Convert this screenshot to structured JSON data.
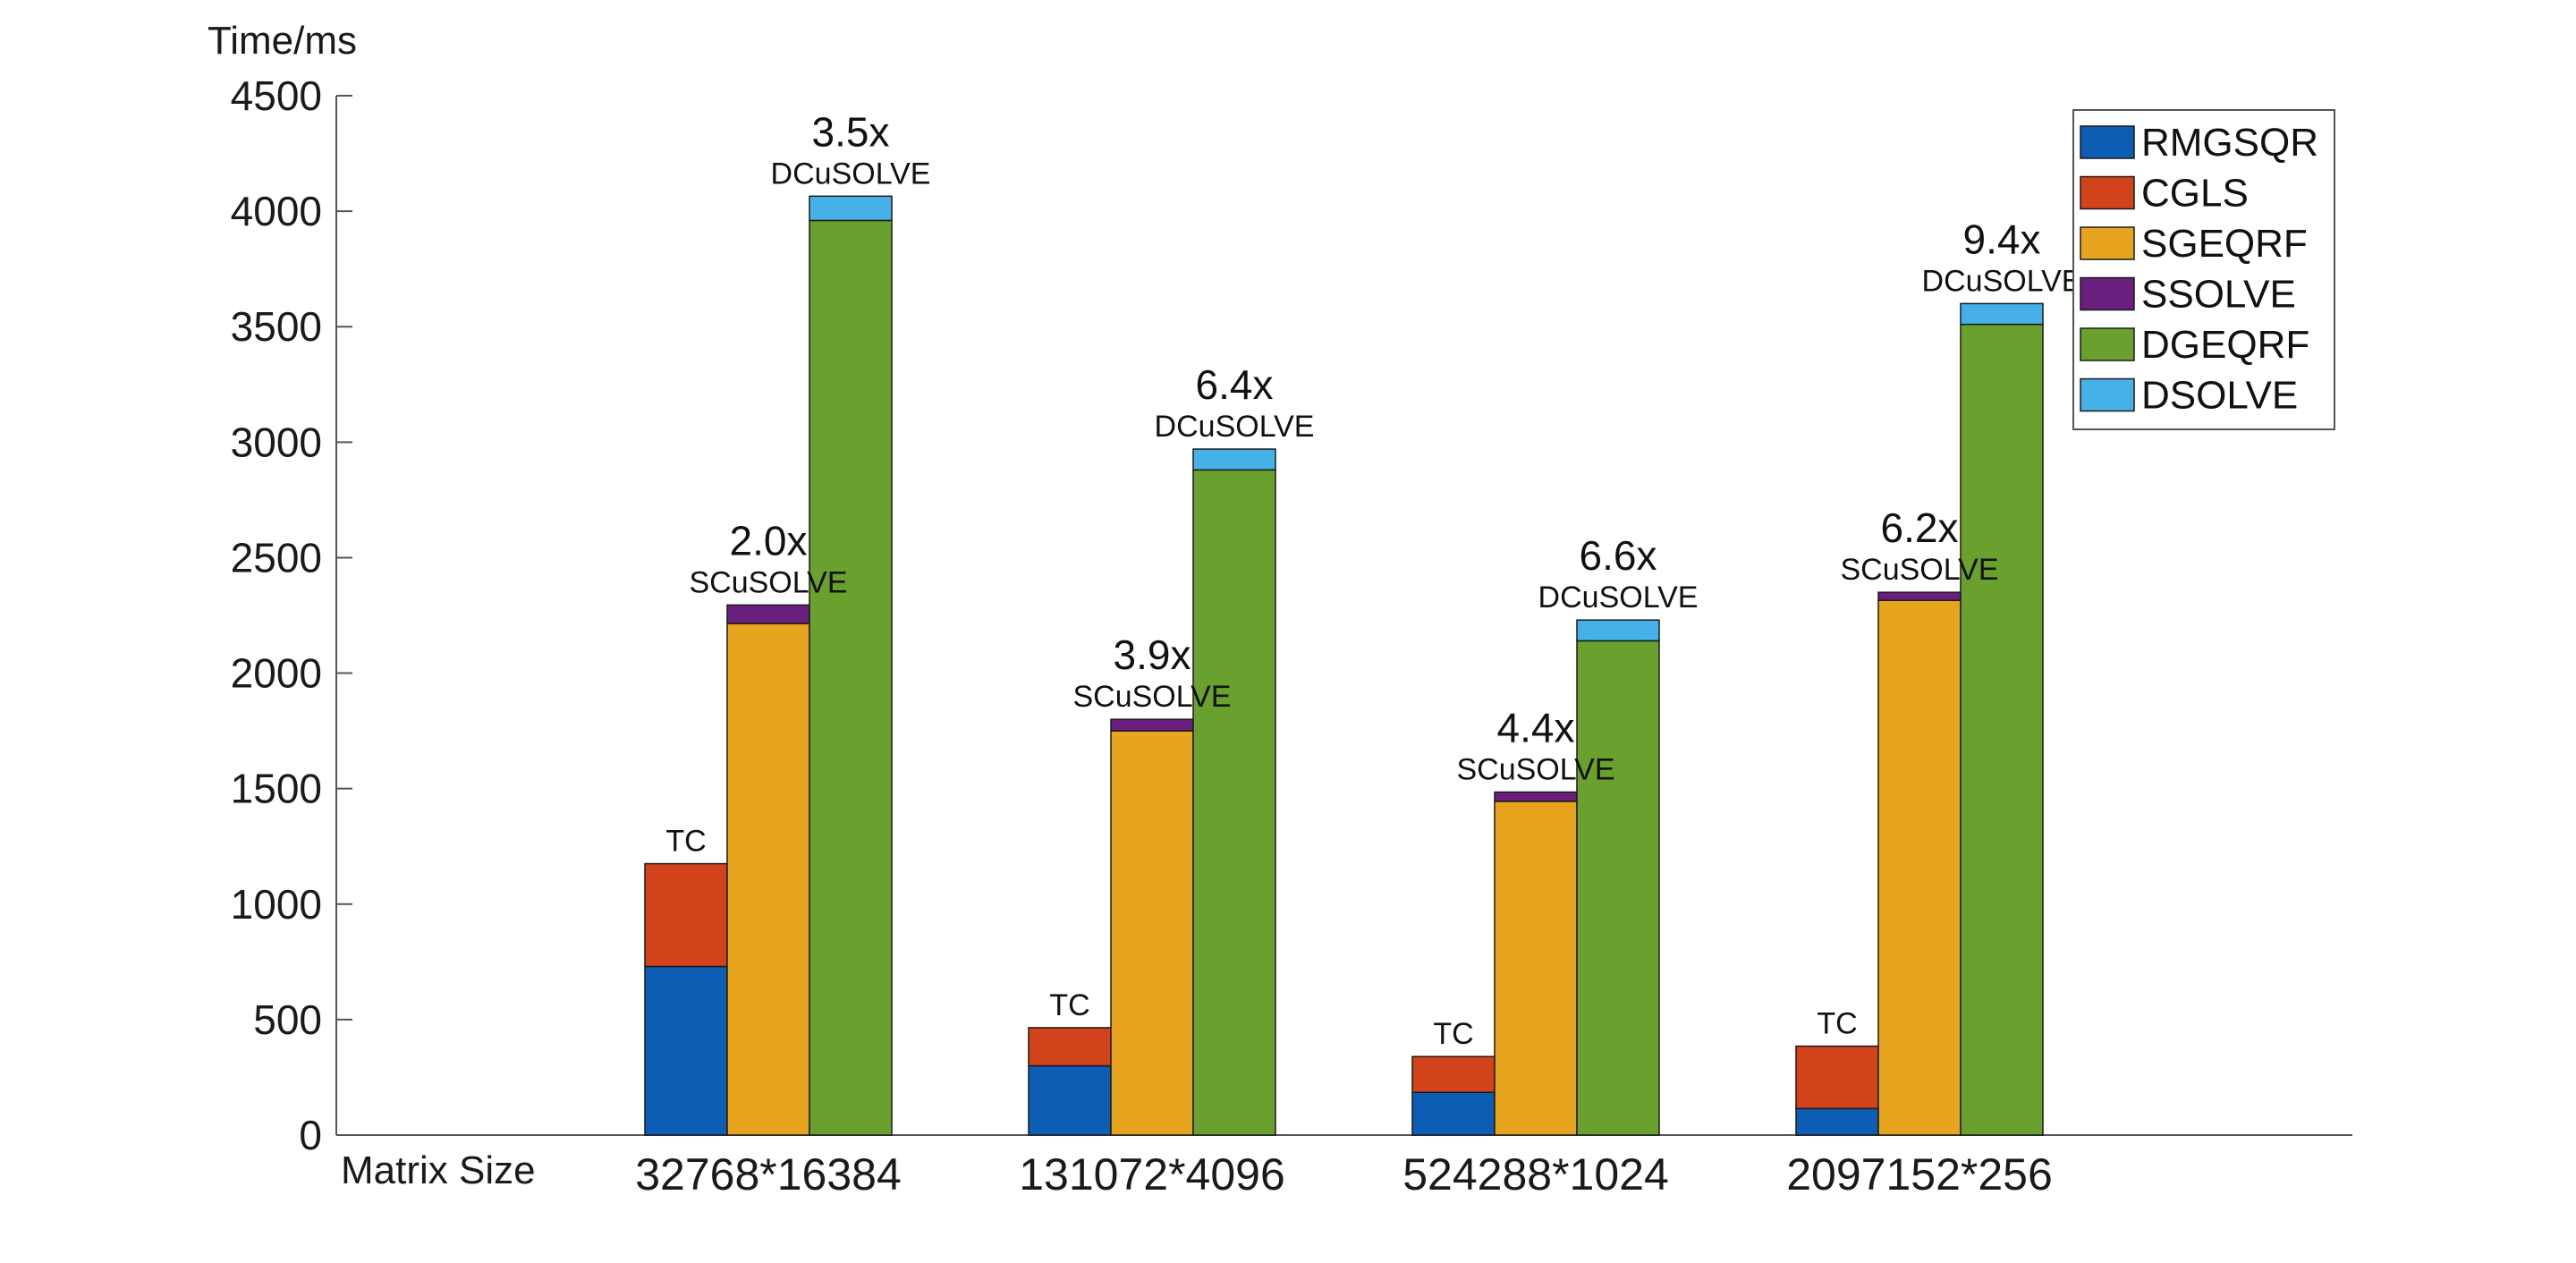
{
  "chart_data": {
    "type": "bar",
    "stacked": true,
    "ylabel": "Time/ms",
    "xlabel": "Matrix Size",
    "ylim": [
      0,
      4500
    ],
    "yticks": [
      0,
      500,
      1000,
      1500,
      2000,
      2500,
      3000,
      3500,
      4000,
      4500
    ],
    "categories": [
      "32768*16384",
      "131072*4096",
      "524288*1024",
      "2097152*256"
    ],
    "colors": {
      "RMGSQR": "#0c5db3",
      "CGLS": "#d2421b",
      "SGEQRF": "#e7a41f",
      "SSOLVE": "#6a1f7e",
      "DGEQRF": "#6aa02e",
      "DSOLVE": "#46b0e8"
    },
    "legend": {
      "position": "top-right",
      "entries": [
        "RMGSQR",
        "CGLS",
        "SGEQRF",
        "SSOLVE",
        "DGEQRF",
        "DSOLVE"
      ]
    },
    "groups": [
      {
        "category": "32768*16384",
        "bars": [
          {
            "label": "TC",
            "speedup": "",
            "segments": [
              {
                "series": "RMGSQR",
                "value": 730
              },
              {
                "series": "CGLS",
                "value": 445
              }
            ]
          },
          {
            "label": "SCuSOLVE",
            "speedup": "2.0x",
            "segments": [
              {
                "series": "SGEQRF",
                "value": 2215
              },
              {
                "series": "SSOLVE",
                "value": 80
              }
            ]
          },
          {
            "label": "DCuSOLVE",
            "speedup": "3.5x",
            "segments": [
              {
                "series": "DGEQRF",
                "value": 3960
              },
              {
                "series": "DSOLVE",
                "value": 105
              }
            ]
          }
        ]
      },
      {
        "category": "131072*4096",
        "bars": [
          {
            "label": "TC",
            "speedup": "",
            "segments": [
              {
                "series": "RMGSQR",
                "value": 300
              },
              {
                "series": "CGLS",
                "value": 165
              }
            ]
          },
          {
            "label": "SCuSOLVE",
            "speedup": "3.9x",
            "segments": [
              {
                "series": "SGEQRF",
                "value": 1750
              },
              {
                "series": "SSOLVE",
                "value": 50
              }
            ]
          },
          {
            "label": "DCuSOLVE",
            "speedup": "6.4x",
            "segments": [
              {
                "series": "DGEQRF",
                "value": 2880
              },
              {
                "series": "DSOLVE",
                "value": 90
              }
            ]
          }
        ]
      },
      {
        "category": "524288*1024",
        "bars": [
          {
            "label": "TC",
            "speedup": "",
            "segments": [
              {
                "series": "RMGSQR",
                "value": 185
              },
              {
                "series": "CGLS",
                "value": 155
              }
            ]
          },
          {
            "label": "SCuSOLVE",
            "speedup": "4.4x",
            "segments": [
              {
                "series": "SGEQRF",
                "value": 1445
              },
              {
                "series": "SSOLVE",
                "value": 40
              }
            ]
          },
          {
            "label": "DCuSOLVE",
            "speedup": "6.6x",
            "segments": [
              {
                "series": "DGEQRF",
                "value": 2140
              },
              {
                "series": "DSOLVE",
                "value": 90
              }
            ]
          }
        ]
      },
      {
        "category": "2097152*256",
        "bars": [
          {
            "label": "TC",
            "speedup": "",
            "segments": [
              {
                "series": "RMGSQR",
                "value": 115
              },
              {
                "series": "CGLS",
                "value": 270
              }
            ]
          },
          {
            "label": "SCuSOLVE",
            "speedup": "6.2x",
            "segments": [
              {
                "series": "SGEQRF",
                "value": 2315
              },
              {
                "series": "SSOLVE",
                "value": 35
              }
            ]
          },
          {
            "label": "DCuSOLVE",
            "speedup": "9.4x",
            "segments": [
              {
                "series": "DGEQRF",
                "value": 3510
              },
              {
                "series": "DSOLVE",
                "value": 90
              }
            ]
          }
        ]
      }
    ]
  }
}
